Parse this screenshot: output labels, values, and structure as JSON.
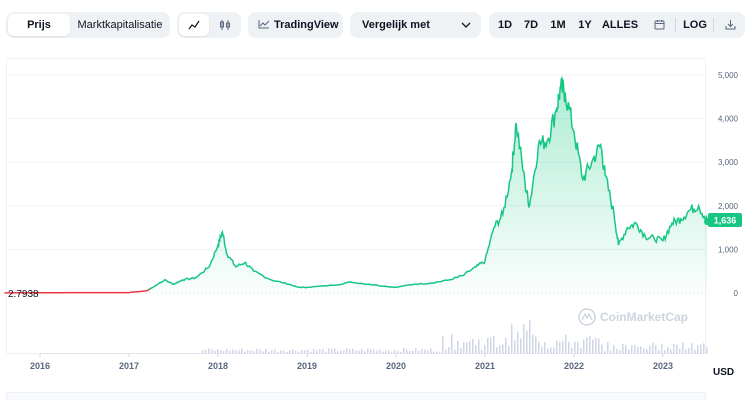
{
  "toolbar": {
    "view_tabs": [
      {
        "label": "Prijs",
        "active": true
      },
      {
        "label": "Marktkapitalisatie",
        "active": false
      }
    ],
    "chart_style_icons": [
      "line-chart-icon",
      "candlestick-icon"
    ],
    "tradingview_label": "TradingView",
    "compare_label": "Vergelijk met",
    "ranges": [
      "1D",
      "7D",
      "1M",
      "1Y",
      "ALLES"
    ],
    "log_label": "LOG"
  },
  "chart": {
    "start_price_label": "2.7938",
    "current_price_label": "1,636",
    "currency_label": "USD",
    "watermark": "CoinMarketCap",
    "y_ticks": [
      "5,000",
      "4,000",
      "3,000",
      "2,000",
      "1,000",
      "0"
    ],
    "x_ticks": [
      "2016",
      "2017",
      "2018",
      "2019",
      "2020",
      "2021",
      "2022",
      "2023"
    ],
    "colors": {
      "line": "#16c784",
      "pre_line": "#ea3943",
      "badge": "#16c784"
    }
  },
  "chart_data": {
    "type": "area",
    "ylim": [
      0,
      5000
    ],
    "x_ticks": [
      "2016",
      "2017",
      "2018",
      "2019",
      "2020",
      "2021",
      "2022",
      "2023"
    ],
    "x": [
      2015.6,
      2016.0,
      2016.5,
      2017.0,
      2017.2,
      2017.4,
      2017.5,
      2017.6,
      2017.75,
      2017.9,
      2018.0,
      2018.05,
      2018.1,
      2018.2,
      2018.3,
      2018.4,
      2018.6,
      2018.8,
      2018.9,
      2019.0,
      2019.3,
      2019.5,
      2019.7,
      2019.9,
      2020.0,
      2020.2,
      2020.4,
      2020.6,
      2020.75,
      2020.9,
      2021.0,
      2021.1,
      2021.2,
      2021.3,
      2021.35,
      2021.45,
      2021.5,
      2021.6,
      2021.7,
      2021.8,
      2021.85,
      2021.9,
      2022.0,
      2022.1,
      2022.2,
      2022.3,
      2022.35,
      2022.45,
      2022.5,
      2022.6,
      2022.7,
      2022.8,
      2022.9,
      2023.0,
      2023.1,
      2023.2,
      2023.3,
      2023.4,
      2023.5
    ],
    "y": [
      2.79,
      5,
      10,
      10,
      50,
      300,
      200,
      300,
      350,
      600,
      1100,
      1400,
      900,
      600,
      700,
      500,
      300,
      200,
      130,
      130,
      180,
      250,
      200,
      150,
      130,
      200,
      230,
      300,
      400,
      600,
      730,
      1500,
      1800,
      2800,
      3900,
      2500,
      2000,
      3400,
      3500,
      4200,
      4700,
      4600,
      3700,
      2600,
      3000,
      3400,
      2700,
      1800,
      1100,
      1500,
      1600,
      1300,
      1250,
      1200,
      1600,
      1700,
      1900,
      2000,
      1636
    ],
    "start_price": 2.7938,
    "current_price": 1636,
    "unit": "USD"
  }
}
